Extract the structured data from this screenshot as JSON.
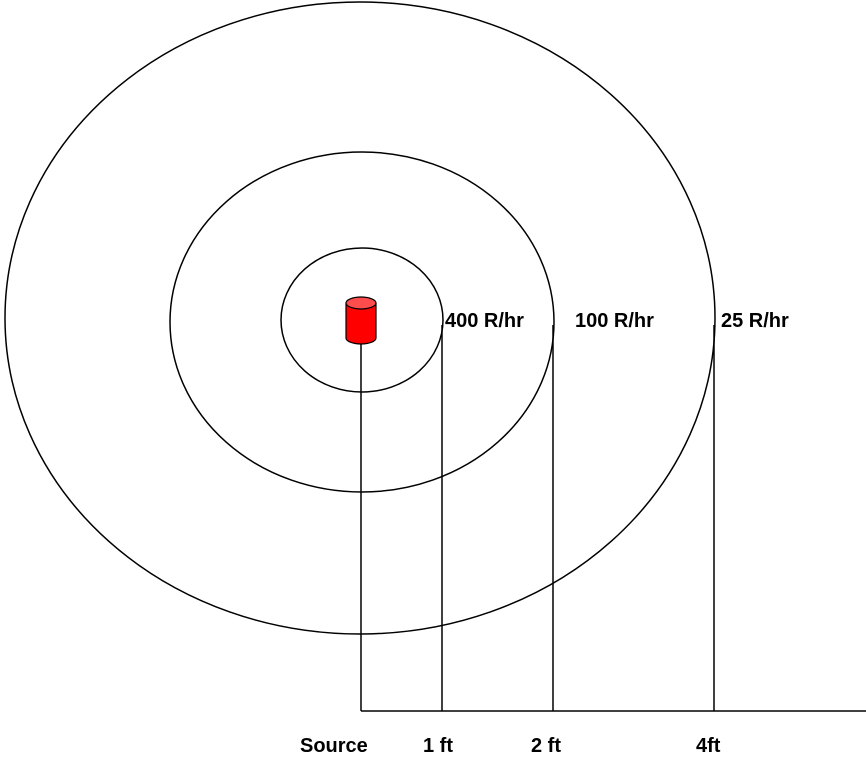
{
  "colors": {
    "source_body": "#ff0000",
    "source_top": "#ff4d4d",
    "stroke": "#000000",
    "background": "#ffffff"
  },
  "dose_labels": {
    "ring_1": "400 R/hr",
    "ring_2": "100 R/hr",
    "ring_3": "25 R/hr"
  },
  "distance_labels": {
    "source": "Source",
    "ring_1": "1 ft",
    "ring_2": "2 ft",
    "ring_3": "4ft"
  },
  "icons": {
    "source": "cylinder-icon"
  }
}
